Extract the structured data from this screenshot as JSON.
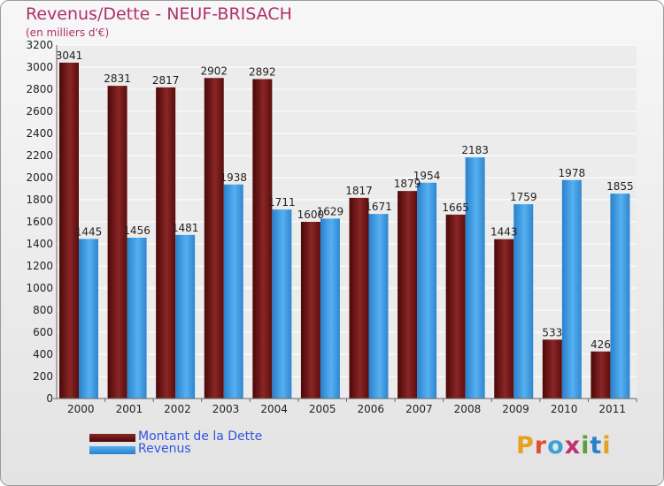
{
  "header": {
    "title": "Revenus/Dette - NEUF-BRISACH",
    "subtitle": "(en milliers d'€)"
  },
  "logo": {
    "text": "Proxiti",
    "colors": [
      "#e8a020",
      "#e05030",
      "#3aa0d8",
      "#c03070",
      "#5aa040",
      "#2a80c8",
      "#e8a020"
    ]
  },
  "chart_data": {
    "type": "bar",
    "title": "Revenus/Dette - NEUF-BRISACH",
    "subtitle": "(en milliers d'€)",
    "xlabel": "",
    "ylabel": "",
    "ylim": [
      0,
      3200
    ],
    "ytick_step": 200,
    "grid": true,
    "legend_position": "bottom-left",
    "categories": [
      "2000",
      "2001",
      "2002",
      "2003",
      "2004",
      "2005",
      "2006",
      "2007",
      "2008",
      "2009",
      "2010",
      "2011"
    ],
    "series": [
      {
        "name": "Montant de la Dette",
        "color": "#7a1a1a",
        "values": [
          3041,
          2831,
          2817,
          2902,
          2892,
          1600,
          1817,
          1879,
          1665,
          1443,
          533,
          426
        ],
        "labels": [
          "3041",
          "2831",
          "2817",
          "2902",
          "2892",
          "1600",
          "1817",
          "1879",
          "1665",
          "1443",
          "533",
          "426"
        ]
      },
      {
        "name": "Revenus",
        "color": "#3d9ee5",
        "values": [
          1445,
          1456,
          1481,
          1938,
          1711,
          1629,
          1671,
          1954,
          2183,
          1759,
          1978,
          1855
        ],
        "labels": [
          "1445",
          "1456",
          "1481",
          "1938",
          "1711",
          "1629",
          "1671",
          "1954",
          "2183",
          "1759",
          "1978",
          "1855"
        ]
      }
    ]
  }
}
